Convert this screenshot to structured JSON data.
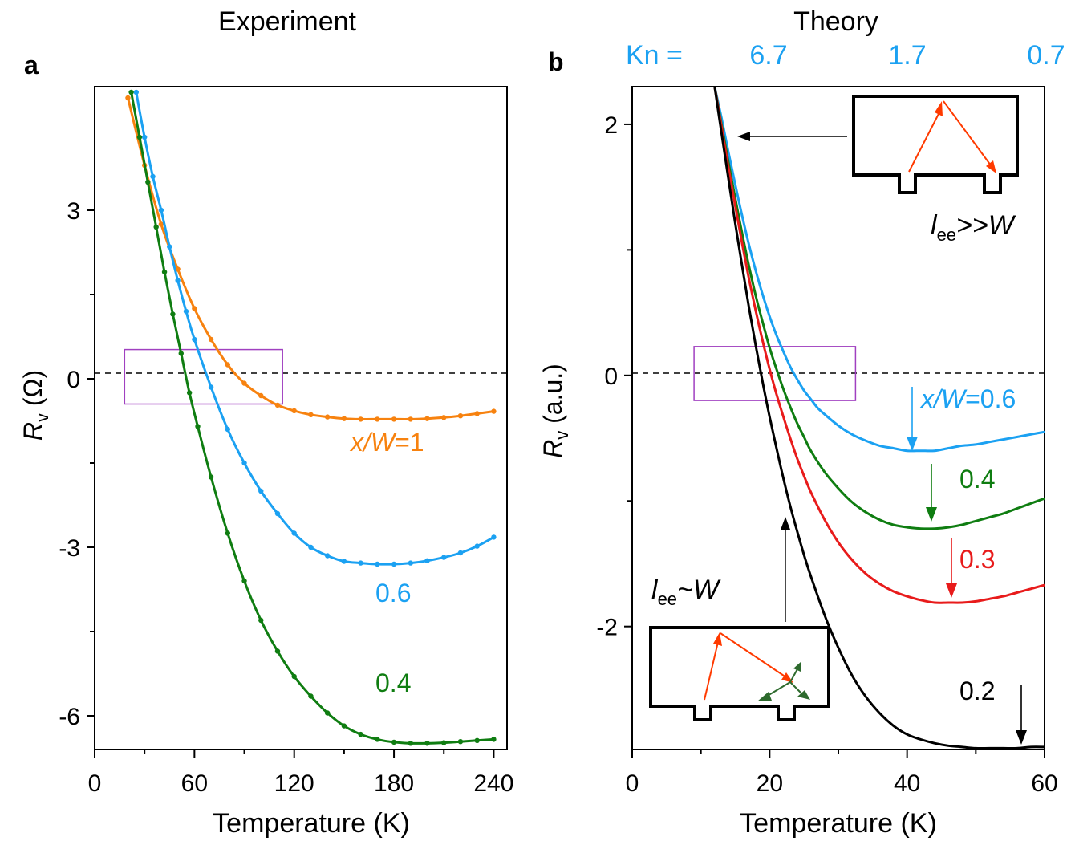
{
  "figure": {
    "panels": {
      "a": {
        "label": "a",
        "header": "Experiment"
      },
      "b": {
        "label": "b",
        "header": "Theory"
      }
    },
    "kn_axis": {
      "prefix": "Kn =",
      "ticks": [
        "6.7",
        "1.7",
        "0.7"
      ],
      "color": "#1ba1f2"
    },
    "colors": {
      "orange": "#f7820f",
      "blue": "#1ba1f2",
      "green": "#0f7d11",
      "red": "#e81b1b",
      "black": "#000000",
      "box": "#a040c0",
      "arrowRed": "#ff3a00",
      "arrowGreen": "#2d6a2d"
    }
  },
  "chart_data": [
    {
      "type": "line",
      "panel": "a",
      "title": "Experiment",
      "xlabel": "Temperature (K)",
      "ylabel": "Rv (Ω)",
      "ylabel_main": "R",
      "ylabel_sub": "v",
      "ylabel_unit": " (Ω)",
      "xlim": [
        0,
        248
      ],
      "ylim": [
        -6.6,
        5.2
      ],
      "xticks": [
        "0",
        "60",
        "120",
        "180",
        "240"
      ],
      "yticks": [
        "3",
        "0",
        "-3",
        "-6"
      ],
      "highlight_box": {
        "x": [
          18,
          113
        ],
        "y": [
          -0.45,
          0.52
        ]
      },
      "series": [
        {
          "name": "x/W=1",
          "label_lead": "x/W",
          "label_tail": "=1",
          "color": "orange",
          "x": [
            20,
            30,
            40,
            50,
            60,
            70,
            80,
            90,
            100,
            110,
            120,
            130,
            140,
            150,
            160,
            170,
            180,
            190,
            200,
            210,
            220,
            230,
            240
          ],
          "y": [
            5.0,
            3.8,
            2.75,
            1.95,
            1.25,
            0.7,
            0.25,
            -0.08,
            -0.3,
            -0.47,
            -0.57,
            -0.64,
            -0.68,
            -0.71,
            -0.72,
            -0.72,
            -0.72,
            -0.72,
            -0.71,
            -0.69,
            -0.66,
            -0.62,
            -0.58
          ]
        },
        {
          "name": "0.6",
          "label": "0.6",
          "color": "blue",
          "x": [
            25,
            30,
            35,
            40,
            45,
            50,
            55,
            60,
            70,
            80,
            90,
            100,
            110,
            120,
            130,
            140,
            150,
            160,
            170,
            180,
            190,
            200,
            210,
            220,
            230,
            240
          ],
          "y": [
            5.1,
            4.3,
            3.6,
            3.0,
            2.35,
            1.75,
            1.2,
            0.7,
            -0.15,
            -0.9,
            -1.5,
            -2.0,
            -2.4,
            -2.75,
            -3.0,
            -3.15,
            -3.25,
            -3.28,
            -3.3,
            -3.3,
            -3.28,
            -3.24,
            -3.18,
            -3.1,
            -2.98,
            -2.82
          ]
        },
        {
          "name": "0.4",
          "label": "0.4",
          "color": "green",
          "x": [
            22,
            27,
            32,
            37,
            42,
            47,
            52,
            57,
            62,
            70,
            80,
            90,
            100,
            110,
            120,
            130,
            140,
            150,
            160,
            170,
            180,
            190,
            200,
            210,
            220,
            230,
            240
          ],
          "y": [
            5.1,
            4.3,
            3.5,
            2.7,
            1.9,
            1.15,
            0.45,
            -0.25,
            -0.85,
            -1.75,
            -2.75,
            -3.6,
            -4.3,
            -4.85,
            -5.3,
            -5.65,
            -5.95,
            -6.18,
            -6.33,
            -6.42,
            -6.47,
            -6.49,
            -6.49,
            -6.48,
            -6.46,
            -6.44,
            -6.42
          ]
        }
      ]
    },
    {
      "type": "line",
      "panel": "b",
      "title": "Theory",
      "xlabel": "Temperature (K)",
      "ylabel": "Rv (a.u.)",
      "ylabel_main": "R",
      "ylabel_sub": "v",
      "ylabel_unit": " (a.u.)",
      "xlim": [
        0,
        60
      ],
      "ylim": [
        -2.98,
        2.3
      ],
      "xticks": [
        "0",
        "20",
        "40",
        "60"
      ],
      "yticks": [
        "2",
        "0",
        "-2"
      ],
      "highlight_box": {
        "x": [
          9,
          32.5
        ],
        "y": [
          -0.2,
          0.23
        ]
      },
      "series": [
        {
          "name": "0.6",
          "label_lead": "x/W",
          "label_tail": "=0.6",
          "color": "blue",
          "x": [
            12,
            13,
            14,
            15,
            16,
            17,
            18,
            19,
            20,
            21,
            22,
            23,
            24,
            25,
            26,
            27,
            28,
            30,
            32,
            34,
            36,
            38,
            40,
            42,
            44,
            46,
            48,
            50,
            52,
            54,
            56,
            58,
            60
          ],
          "y": [
            2.3,
            2.05,
            1.78,
            1.52,
            1.27,
            1.04,
            0.83,
            0.64,
            0.47,
            0.32,
            0.19,
            0.07,
            -0.03,
            -0.12,
            -0.19,
            -0.26,
            -0.31,
            -0.4,
            -0.47,
            -0.52,
            -0.56,
            -0.58,
            -0.6,
            -0.6,
            -0.6,
            -0.58,
            -0.56,
            -0.55,
            -0.53,
            -0.51,
            -0.49,
            -0.47,
            -0.45
          ]
        },
        {
          "name": "0.4",
          "label": "0.4",
          "color": "green",
          "x": [
            12,
            13,
            14,
            15,
            16,
            17,
            18,
            19,
            20,
            21,
            22,
            23,
            24,
            25,
            26,
            28,
            30,
            32,
            34,
            36,
            38,
            40,
            42,
            44,
            46,
            48,
            50,
            52,
            54,
            56,
            58,
            60
          ],
          "y": [
            2.3,
            2.0,
            1.7,
            1.41,
            1.13,
            0.87,
            0.63,
            0.42,
            0.22,
            0.05,
            -0.11,
            -0.25,
            -0.38,
            -0.49,
            -0.6,
            -0.77,
            -0.9,
            -1.01,
            -1.09,
            -1.15,
            -1.19,
            -1.21,
            -1.22,
            -1.22,
            -1.21,
            -1.19,
            -1.16,
            -1.13,
            -1.1,
            -1.06,
            -1.02,
            -0.98
          ]
        },
        {
          "name": "0.3",
          "label": "0.3",
          "color": "red",
          "x": [
            12,
            13,
            14,
            15,
            16,
            17,
            18,
            19,
            20,
            21,
            22,
            23,
            24,
            25,
            26,
            28,
            30,
            32,
            34,
            36,
            38,
            40,
            42,
            44,
            46,
            48,
            50,
            52,
            54,
            56,
            58,
            60
          ],
          "y": [
            2.3,
            1.98,
            1.66,
            1.35,
            1.05,
            0.77,
            0.51,
            0.27,
            0.05,
            -0.15,
            -0.33,
            -0.5,
            -0.66,
            -0.8,
            -0.93,
            -1.15,
            -1.33,
            -1.47,
            -1.58,
            -1.66,
            -1.72,
            -1.76,
            -1.79,
            -1.81,
            -1.81,
            -1.81,
            -1.8,
            -1.78,
            -1.76,
            -1.73,
            -1.7,
            -1.67
          ]
        },
        {
          "name": "0.2",
          "label": "0.2",
          "color": "black",
          "x": [
            12,
            13,
            14,
            15,
            16,
            17,
            18,
            19,
            20,
            21,
            22,
            23,
            24,
            25,
            26,
            28,
            30,
            32,
            34,
            36,
            38,
            40,
            42,
            44,
            46,
            48,
            50,
            52,
            54,
            56,
            58,
            60
          ],
          "y": [
            2.3,
            1.93,
            1.57,
            1.21,
            0.87,
            0.54,
            0.23,
            -0.06,
            -0.33,
            -0.58,
            -0.82,
            -1.04,
            -1.24,
            -1.43,
            -1.6,
            -1.91,
            -2.17,
            -2.39,
            -2.56,
            -2.69,
            -2.79,
            -2.86,
            -2.9,
            -2.93,
            -2.95,
            -2.96,
            -2.97,
            -2.97,
            -2.97,
            -2.97,
            -2.96,
            -2.96
          ]
        }
      ],
      "insets": {
        "top": {
          "label_main": "l",
          "label_sub": "ee",
          "label_tail": ">>W"
        },
        "bottom": {
          "label_main": "l",
          "label_sub": "ee",
          "label_tail": "~W"
        }
      }
    }
  ]
}
